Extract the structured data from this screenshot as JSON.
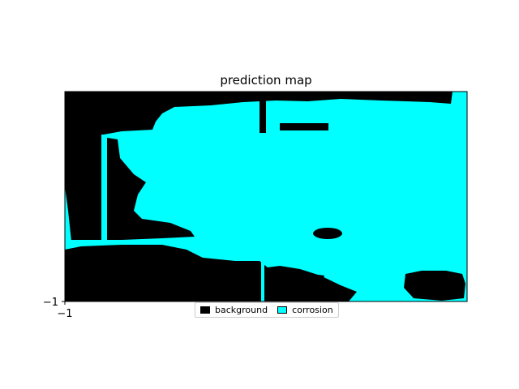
{
  "chart_data": {
    "type": "heatmap",
    "title": "prediction map",
    "xlabel": "",
    "ylabel": "",
    "x_tick_labels": [
      "−1"
    ],
    "y_tick_labels": [
      "−1"
    ],
    "grid": false,
    "legend_placement": "lower-center",
    "classes": [
      {
        "name": "background",
        "color": "#000000"
      },
      {
        "name": "corrosion",
        "color": "#00ffff"
      }
    ]
  }
}
